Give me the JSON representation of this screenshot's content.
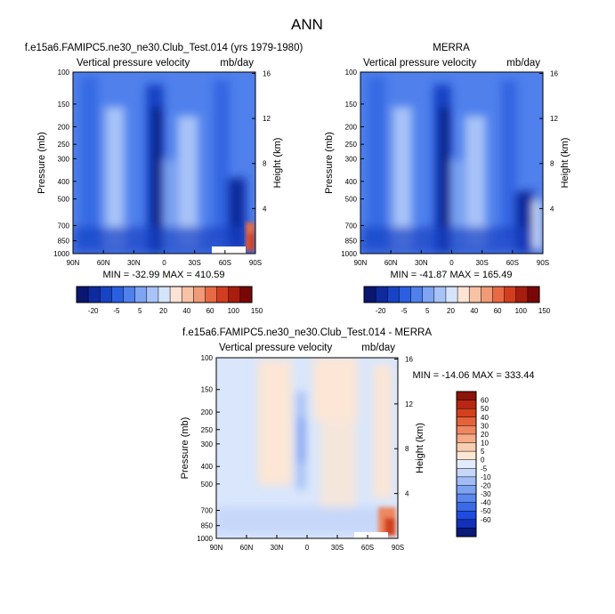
{
  "page": {
    "title": "ANN"
  },
  "colors": {
    "panel_scale": [
      "#0a1670",
      "#0f2a9e",
      "#1743c4",
      "#2a5fe0",
      "#4f80ec",
      "#7ea4f3",
      "#a8c3f8",
      "#d6e4fb",
      "#fbe3d6",
      "#f7c2a6",
      "#f19a77",
      "#e86a45",
      "#d33d1f",
      "#a81d0e",
      "#7a0707"
    ],
    "diff_scale": [
      "#0a1a7a",
      "#1330b8",
      "#1f4ce0",
      "#3a6ae8",
      "#5a86ee",
      "#7ea2f2",
      "#a2bdf6",
      "#c6d7fa",
      "#e2ebfc",
      "#fde6d5",
      "#f9cdb0",
      "#f4ab88",
      "#ee875f",
      "#e4623a",
      "#d3401e",
      "#b82713",
      "#8c1409"
    ]
  },
  "chart_data": [
    {
      "type": "heatmap",
      "title": "f.e15a6.FAMIPC5.ne30_ne30.Club_Test.014 (yrs 1979-1980)",
      "subtitle_left": "Vertical pressure velocity",
      "subtitle_right": "mb/day",
      "ylabel": "Pressure (mb)",
      "ylabel_right": "Height (km)",
      "x_ticks": [
        "90N",
        "60N",
        "30N",
        "0",
        "30S",
        "60S",
        "90S"
      ],
      "y_ticks": [
        "100",
        "150",
        "200",
        "250",
        "300",
        "400",
        "500",
        "700",
        "850",
        "1000"
      ],
      "y_ticks_values": [
        100,
        150,
        200,
        250,
        300,
        400,
        500,
        700,
        850,
        1000
      ],
      "y_right_ticks": [
        "16",
        "12",
        "8",
        "4"
      ],
      "y_right_values_km": [
        16,
        12,
        8,
        4
      ],
      "stats": "MIN = -32.99  MAX = 410.59",
      "colorbar_labels": [
        "-20",
        "-5",
        "5",
        "20",
        "40",
        "60",
        "100",
        "150"
      ]
    },
    {
      "type": "heatmap",
      "title": "MERRA",
      "subtitle_left": "Vertical pressure velocity",
      "subtitle_right": "mb/day",
      "ylabel": "Pressure (mb)",
      "ylabel_right": "Height (km)",
      "x_ticks": [
        "90N",
        "60N",
        "30N",
        "0",
        "30S",
        "60S",
        "90S"
      ],
      "y_ticks": [
        "100",
        "150",
        "200",
        "250",
        "300",
        "400",
        "500",
        "700",
        "850",
        "1000"
      ],
      "y_ticks_values": [
        100,
        150,
        200,
        250,
        300,
        400,
        500,
        700,
        850,
        1000
      ],
      "y_right_ticks": [
        "16",
        "12",
        "8",
        "4"
      ],
      "y_right_values_km": [
        16,
        12,
        8,
        4
      ],
      "stats": "MIN = -41.87  MAX = 165.49",
      "colorbar_labels": [
        "-20",
        "-5",
        "5",
        "20",
        "40",
        "60",
        "100",
        "150"
      ]
    },
    {
      "type": "heatmap",
      "title": "f.e15a6.FAMIPC5.ne30_ne30.Club_Test.014 - MERRA",
      "subtitle_left": "Vertical pressure velocity",
      "subtitle_right": "mb/day",
      "ylabel": "Pressure (mb)",
      "ylabel_right": "Height (km)",
      "x_ticks": [
        "90N",
        "60N",
        "30N",
        "0",
        "30S",
        "60S",
        "90S"
      ],
      "y_ticks": [
        "100",
        "150",
        "200",
        "250",
        "300",
        "400",
        "500",
        "700",
        "850",
        "1000"
      ],
      "y_ticks_values": [
        100,
        150,
        200,
        250,
        300,
        400,
        500,
        700,
        850,
        1000
      ],
      "y_right_ticks": [
        "16",
        "12",
        "8",
        "4"
      ],
      "y_right_values_km": [
        16,
        12,
        8,
        4
      ],
      "stats": "MIN = -14.06  MAX = 333.44",
      "colorbar_labels": [
        "60",
        "50",
        "40",
        "30",
        "20",
        "10",
        "5",
        "0",
        "-5",
        "-10",
        "-20",
        "-30",
        "-40",
        "-50",
        "-60"
      ]
    }
  ]
}
